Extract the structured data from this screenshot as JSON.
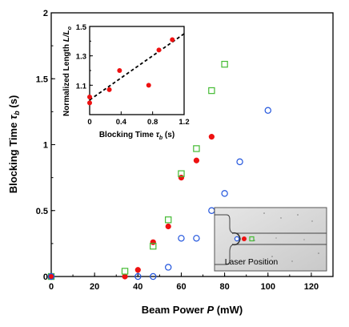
{
  "chart_data": [
    {
      "type": "scatter",
      "xlabel": "Beam Power P (mW)",
      "ylabel": "Blocking Time τb (s)",
      "xlim": [
        0,
        130
      ],
      "ylim": [
        0,
        2
      ],
      "xticks": [
        "0",
        "20",
        "40",
        "60",
        "80",
        "100",
        "120"
      ],
      "yticks": [
        "0",
        "0.5",
        "1",
        "1.5",
        "2"
      ],
      "grid": false,
      "series": [
        {
          "marker": "filled-circle",
          "color": "#ee1111",
          "points": [
            [
              0,
              0
            ],
            [
              34,
              0
            ],
            [
              40,
              0.05
            ],
            [
              47,
              0.26
            ],
            [
              54,
              0.38
            ],
            [
              60,
              0.75
            ],
            [
              67,
              0.88
            ],
            [
              74,
              1.06
            ]
          ]
        },
        {
          "marker": "open-square",
          "color": "#44bb33",
          "points": [
            [
              0,
              0
            ],
            [
              34,
              0.04
            ],
            [
              47,
              0.23
            ],
            [
              54,
              0.43
            ],
            [
              60,
              0.78
            ],
            [
              67,
              0.97
            ],
            [
              74,
              1.41
            ],
            [
              80,
              1.61
            ]
          ]
        },
        {
          "marker": "open-circle",
          "color": "#2255dd",
          "points": [
            [
              0,
              0
            ],
            [
              40,
              0
            ],
            [
              47,
              0
            ],
            [
              54,
              0.07
            ],
            [
              60,
              0.29
            ],
            [
              67,
              0.29
            ],
            [
              74,
              0.5
            ],
            [
              80,
              0.63
            ],
            [
              87,
              0.87
            ],
            [
              100,
              1.26
            ]
          ]
        }
      ]
    },
    {
      "type": "scatter",
      "position": "inset-top-left",
      "xlabel": "Blocking Time τb (s)",
      "ylabel": "Normalized Length L/Lo",
      "xlim": [
        0,
        1.2
      ],
      "ylim": [
        0.9,
        1.5
      ],
      "xticks": [
        "0",
        "0.4",
        "0.8",
        "1.2"
      ],
      "yticks": [
        "1.1",
        "1.3",
        "1.5"
      ],
      "series": [
        {
          "marker": "filled-circle",
          "color": "#ee1111",
          "points": [
            [
              0,
              0.98
            ],
            [
              0,
              1.02
            ],
            [
              0.25,
              1.07
            ],
            [
              0.38,
              1.2
            ],
            [
              0.75,
              1.1
            ],
            [
              0.88,
              1.34
            ],
            [
              1.05,
              1.41
            ]
          ]
        }
      ],
      "trendline": {
        "style": "dashed",
        "x": [
          0,
          1.2
        ],
        "y": [
          1.0,
          1.45
        ]
      }
    }
  ],
  "photo_inset": {
    "caption": "Laser Position"
  }
}
